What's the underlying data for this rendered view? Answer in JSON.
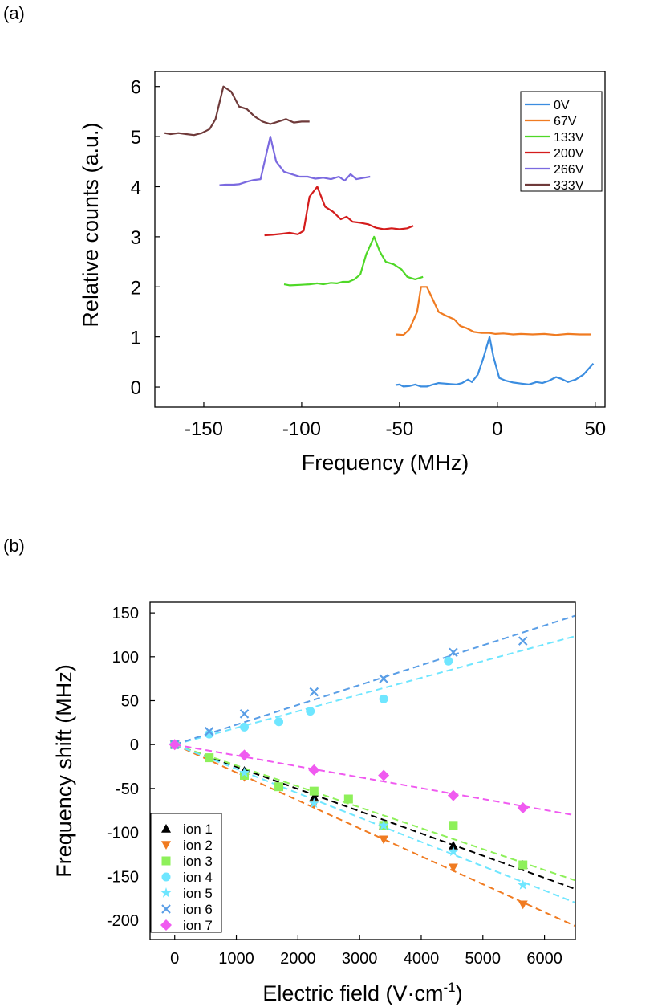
{
  "chart_data": [
    {
      "panel_label": "(a)",
      "type": "line",
      "xlabel": "Frequency (MHz)",
      "ylabel": "Relative counts (a.u.)",
      "xlim": [
        -175,
        55
      ],
      "ylim": [
        -0.4,
        6.3
      ],
      "xticks": [
        -150,
        -100,
        -50,
        0,
        50
      ],
      "yticks": [
        0,
        1,
        2,
        3,
        4,
        5,
        6
      ],
      "legend_position": "top-right",
      "series": [
        {
          "name": "0V",
          "color": "#3b8de0",
          "points": [
            [
              -52,
              0.04
            ],
            [
              -50,
              0.05
            ],
            [
              -48,
              0.01
            ],
            [
              -45,
              0.02
            ],
            [
              -42,
              0.05
            ],
            [
              -39,
              0.01
            ],
            [
              -36,
              0.01
            ],
            [
              -33,
              0.05
            ],
            [
              -30,
              0.08
            ],
            [
              -27,
              0.07
            ],
            [
              -24,
              0.06
            ],
            [
              -21,
              0.05
            ],
            [
              -18,
              0.08
            ],
            [
              -15,
              0.15
            ],
            [
              -13,
              0.1
            ],
            [
              -10,
              0.25
            ],
            [
              -7,
              0.6
            ],
            [
              -4,
              1.0
            ],
            [
              -2,
              0.6
            ],
            [
              1,
              0.18
            ],
            [
              4,
              0.13
            ],
            [
              8,
              0.09
            ],
            [
              12,
              0.07
            ],
            [
              16,
              0.05
            ],
            [
              20,
              0.1
            ],
            [
              23,
              0.08
            ],
            [
              26,
              0.12
            ],
            [
              30,
              0.2
            ],
            [
              33,
              0.16
            ],
            [
              36,
              0.1
            ],
            [
              40,
              0.15
            ],
            [
              44,
              0.25
            ],
            [
              49,
              0.47
            ]
          ]
        },
        {
          "name": "67V",
          "color": "#f07b21",
          "points": [
            [
              -52,
              1.05
            ],
            [
              -48,
              1.04
            ],
            [
              -45,
              1.15
            ],
            [
              -41,
              1.5
            ],
            [
              -39,
              2.0
            ],
            [
              -36,
              2.0
            ],
            [
              -33,
              1.75
            ],
            [
              -30,
              1.5
            ],
            [
              -26,
              1.42
            ],
            [
              -22,
              1.35
            ],
            [
              -19,
              1.22
            ],
            [
              -16,
              1.18
            ],
            [
              -12,
              1.1
            ],
            [
              -8,
              1.08
            ],
            [
              -4,
              1.08
            ],
            [
              -1,
              1.06
            ],
            [
              3,
              1.07
            ],
            [
              8,
              1.05
            ],
            [
              12,
              1.06
            ],
            [
              18,
              1.05
            ],
            [
              24,
              1.06
            ],
            [
              30,
              1.04
            ],
            [
              36,
              1.06
            ],
            [
              42,
              1.05
            ],
            [
              48,
              1.05
            ]
          ]
        },
        {
          "name": "133V",
          "color": "#4fd827",
          "points": [
            [
              -109,
              2.05
            ],
            [
              -106,
              2.03
            ],
            [
              -101,
              2.04
            ],
            [
              -96,
              2.05
            ],
            [
              -92,
              2.07
            ],
            [
              -89,
              2.05
            ],
            [
              -85,
              2.08
            ],
            [
              -82,
              2.07
            ],
            [
              -79,
              2.1
            ],
            [
              -76,
              2.1
            ],
            [
              -73,
              2.15
            ],
            [
              -70,
              2.25
            ],
            [
              -67,
              2.65
            ],
            [
              -63,
              3.0
            ],
            [
              -60,
              2.7
            ],
            [
              -57,
              2.5
            ],
            [
              -53,
              2.45
            ],
            [
              -49,
              2.35
            ],
            [
              -46,
              2.2
            ],
            [
              -42,
              2.15
            ],
            [
              -38,
              2.2
            ]
          ]
        },
        {
          "name": "200V",
          "color": "#d41c1c",
          "points": [
            [
              -119,
              3.03
            ],
            [
              -115,
              3.04
            ],
            [
              -110,
              3.06
            ],
            [
              -106,
              3.08
            ],
            [
              -102,
              3.05
            ],
            [
              -99,
              3.12
            ],
            [
              -96,
              3.8
            ],
            [
              -92,
              4.0
            ],
            [
              -88,
              3.6
            ],
            [
              -84,
              3.5
            ],
            [
              -80,
              3.35
            ],
            [
              -77,
              3.4
            ],
            [
              -74,
              3.3
            ],
            [
              -70,
              3.28
            ],
            [
              -66,
              3.25
            ],
            [
              -62,
              3.18
            ],
            [
              -58,
              3.15
            ],
            [
              -54,
              3.17
            ],
            [
              -50,
              3.15
            ],
            [
              -46,
              3.17
            ],
            [
              -43,
              3.22
            ]
          ]
        },
        {
          "name": "266V",
          "color": "#7b6ae0",
          "points": [
            [
              -142,
              4.03
            ],
            [
              -139,
              4.04
            ],
            [
              -135,
              4.04
            ],
            [
              -132,
              4.05
            ],
            [
              -128,
              4.1
            ],
            [
              -125,
              4.13
            ],
            [
              -121,
              4.15
            ],
            [
              -116,
              5.0
            ],
            [
              -113,
              4.5
            ],
            [
              -109,
              4.3
            ],
            [
              -105,
              4.25
            ],
            [
              -101,
              4.2
            ],
            [
              -97,
              4.2
            ],
            [
              -93,
              4.16
            ],
            [
              -89,
              4.18
            ],
            [
              -85,
              4.15
            ],
            [
              -81,
              4.2
            ],
            [
              -78,
              4.12
            ],
            [
              -75,
              4.25
            ],
            [
              -72,
              4.15
            ],
            [
              -68,
              4.18
            ],
            [
              -65,
              4.2
            ]
          ]
        },
        {
          "name": "333V",
          "color": "#6f3a3a",
          "points": [
            [
              -170,
              5.07
            ],
            [
              -167,
              5.05
            ],
            [
              -163,
              5.07
            ],
            [
              -159,
              5.05
            ],
            [
              -155,
              5.03
            ],
            [
              -151,
              5.07
            ],
            [
              -147,
              5.15
            ],
            [
              -144,
              5.35
            ],
            [
              -140,
              6.0
            ],
            [
              -136,
              5.9
            ],
            [
              -132,
              5.6
            ],
            [
              -128,
              5.55
            ],
            [
              -124,
              5.4
            ],
            [
              -120,
              5.3
            ],
            [
              -116,
              5.25
            ],
            [
              -112,
              5.3
            ],
            [
              -108,
              5.35
            ],
            [
              -104,
              5.28
            ],
            [
              -100,
              5.3
            ],
            [
              -96,
              5.3
            ]
          ]
        }
      ]
    },
    {
      "panel_label": "(b)",
      "type": "scatter",
      "xlabel": "Electric field (V·cm",
      "xlabel_sup": "-1",
      "xlabel_close": ")",
      "ylabel": "Frequency shift (MHz)",
      "xlim": [
        -400,
        6500
      ],
      "ylim": [
        -222,
        162
      ],
      "xticks": [
        0,
        1000,
        2000,
        3000,
        4000,
        5000,
        6000
      ],
      "yticks": [
        150,
        100,
        50,
        0,
        -50,
        -100,
        -150,
        -200
      ],
      "legend_position": "bottom-left",
      "series": [
        {
          "name": "ion 1",
          "marker": "triangle-up",
          "color": "#000000",
          "slope": -0.0253,
          "points": [
            [
              0,
              0
            ],
            [
              1130,
              -30
            ],
            [
              2260,
              -60
            ],
            [
              3390,
              -92
            ],
            [
              4520,
              -115
            ],
            [
              5650,
              -137
            ]
          ]
        },
        {
          "name": "ion 2",
          "marker": "triangle-down",
          "color": "#f07b21",
          "slope": -0.0318,
          "points": [
            [
              0,
              0
            ],
            [
              1130,
              -37
            ],
            [
              2260,
              -68
            ],
            [
              3390,
              -108
            ],
            [
              4520,
              -140
            ],
            [
              5650,
              -182
            ]
          ]
        },
        {
          "name": "ion 3",
          "marker": "square",
          "color": "#8ef05a",
          "slope": -0.0238,
          "points": [
            [
              0,
              0
            ],
            [
              560,
              -15
            ],
            [
              1130,
              -35
            ],
            [
              1690,
              -48
            ],
            [
              2260,
              -53
            ],
            [
              2820,
              -62
            ],
            [
              3390,
              -92
            ],
            [
              4520,
              -92
            ],
            [
              5650,
              -137
            ]
          ]
        },
        {
          "name": "ion 4",
          "marker": "circle",
          "color": "#6fe6ff",
          "slope": 0.019,
          "points": [
            [
              0,
              0
            ],
            [
              560,
              12
            ],
            [
              1130,
              20
            ],
            [
              1690,
              26
            ],
            [
              2200,
              38
            ],
            [
              3390,
              52
            ],
            [
              4440,
              95
            ]
          ]
        },
        {
          "name": "ion 5",
          "marker": "star",
          "color": "#6fe6ff",
          "slope": -0.0277,
          "points": [
            [
              0,
              0
            ],
            [
              1130,
              -32
            ],
            [
              2260,
              -67
            ],
            [
              3390,
              -92
            ],
            [
              4520,
              -122
            ],
            [
              5650,
              -160
            ]
          ]
        },
        {
          "name": "ion 6",
          "marker": "x",
          "color": "#5a9ee6",
          "slope": 0.0226,
          "points": [
            [
              0,
              0
            ],
            [
              560,
              15
            ],
            [
              1130,
              35
            ],
            [
              2260,
              60
            ],
            [
              3390,
              75
            ],
            [
              4520,
              105
            ],
            [
              5650,
              118
            ]
          ]
        },
        {
          "name": "ion 7",
          "marker": "diamond",
          "color": "#f05af0",
          "slope": -0.0124,
          "points": [
            [
              0,
              0
            ],
            [
              1130,
              -12
            ],
            [
              2260,
              -29
            ],
            [
              3390,
              -35
            ],
            [
              4520,
              -58
            ],
            [
              5650,
              -72
            ]
          ]
        }
      ]
    }
  ]
}
